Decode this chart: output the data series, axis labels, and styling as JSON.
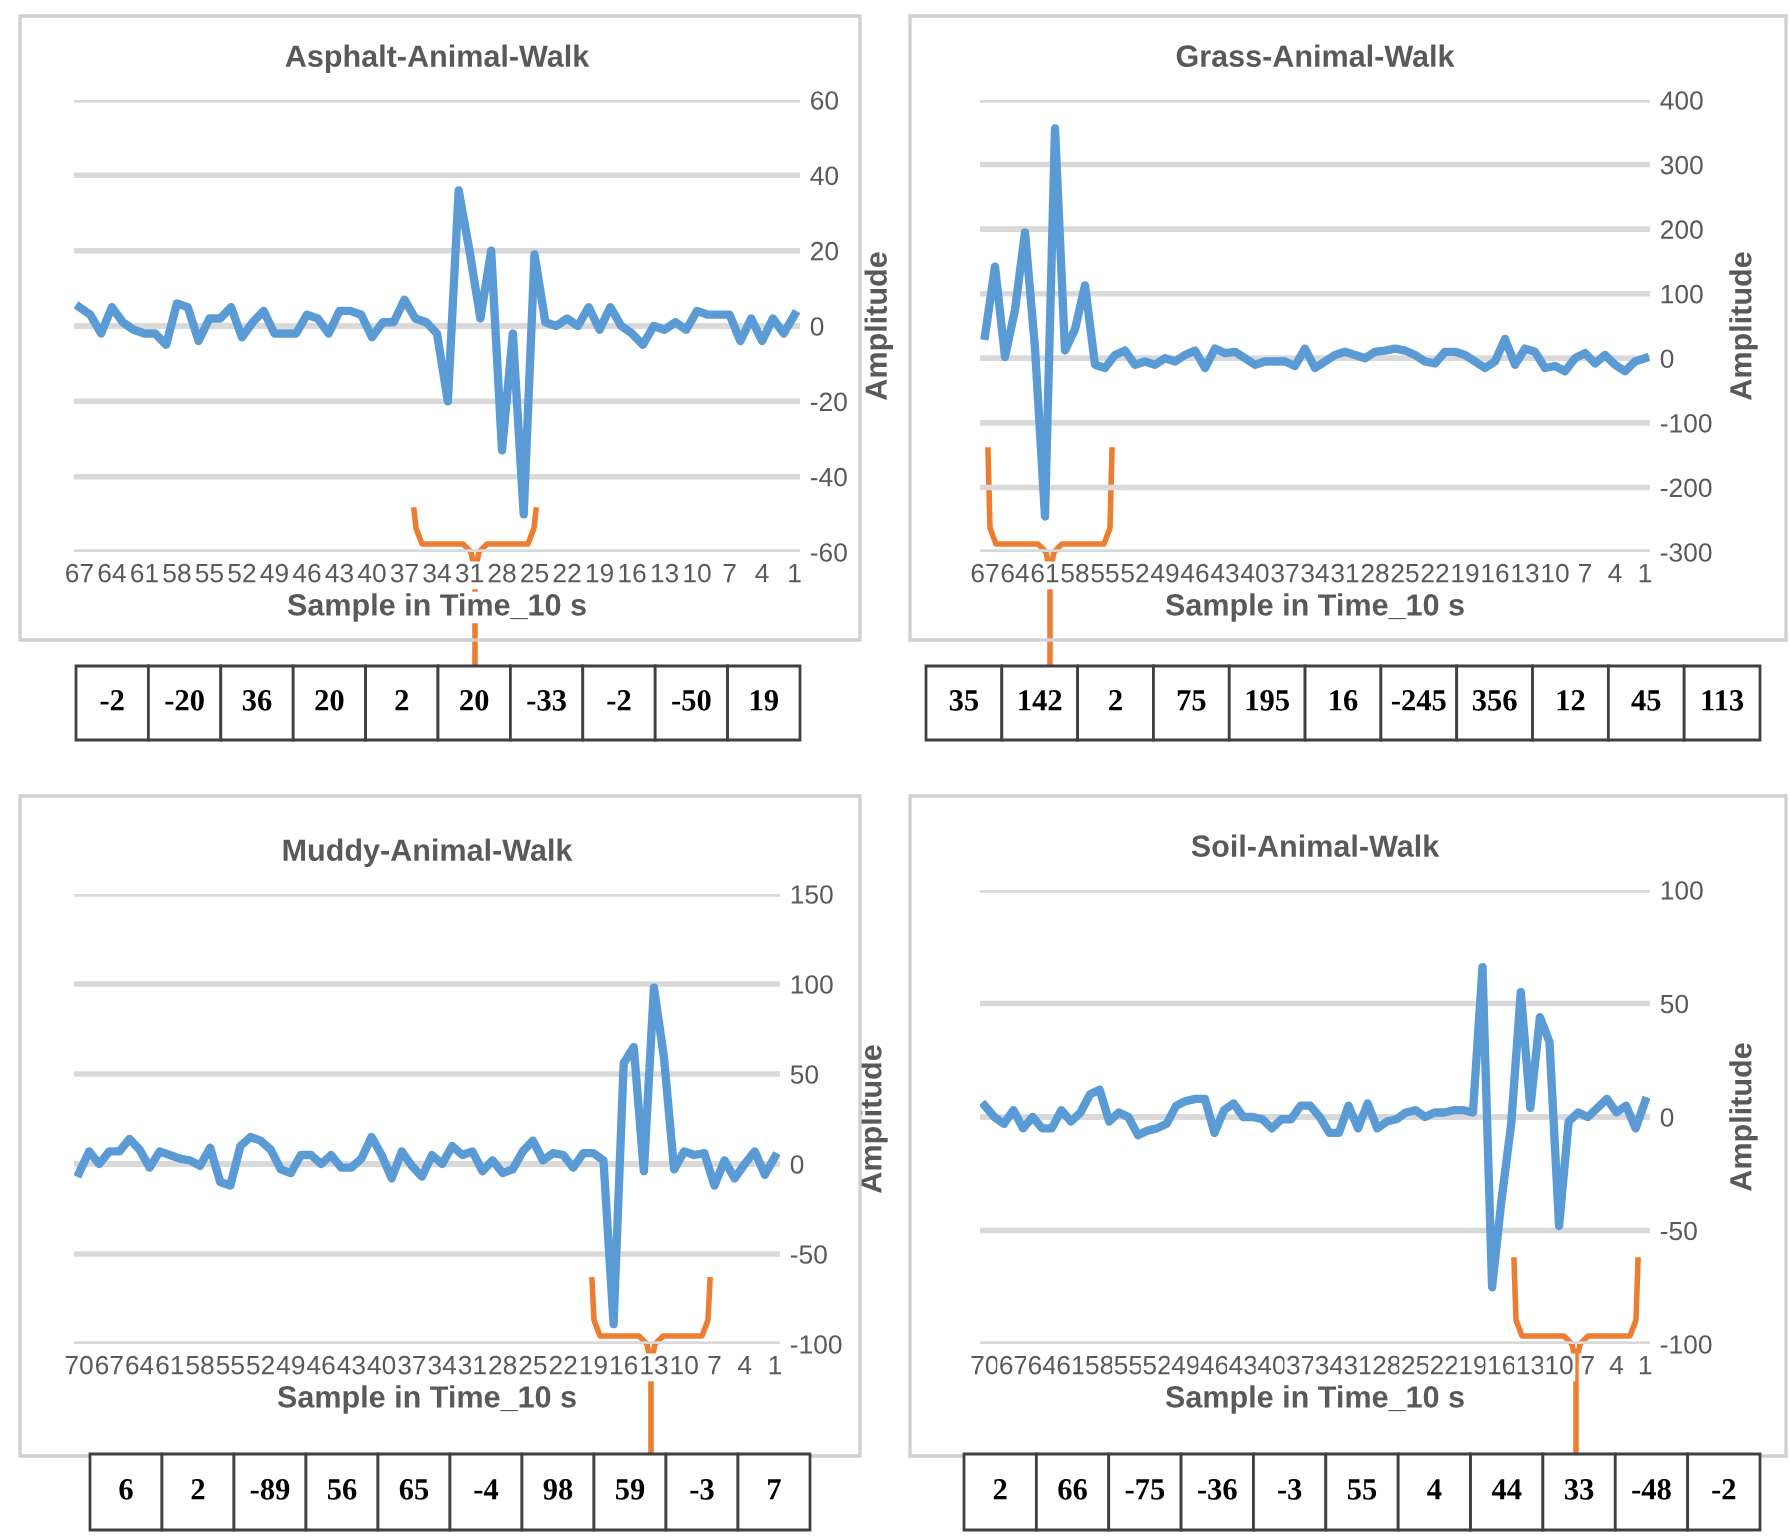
{
  "chart_data": [
    {
      "type": "line",
      "title": "Asphalt-Animal-Walk",
      "xlabel": "Sample in Time_10 s",
      "ylabel": "Amplitude",
      "categories": [
        "67",
        null,
        null,
        "64",
        null,
        null,
        "61",
        null,
        null,
        "58",
        null,
        null,
        "55",
        null,
        null,
        "52",
        null,
        null,
        "49",
        null,
        null,
        "46",
        null,
        null,
        "43",
        null,
        null,
        "40",
        null,
        null,
        "37",
        null,
        null,
        "34",
        null,
        null,
        "31",
        null,
        null,
        "28",
        null,
        null,
        "25",
        null,
        null,
        "22",
        null,
        null,
        "19",
        null,
        null,
        "16",
        null,
        null,
        "13",
        null,
        null,
        "10",
        null,
        null,
        "7",
        null,
        null,
        "4",
        null,
        null,
        "1"
      ],
      "series": [
        {
          "color": "#5b9bd5",
          "values": [
            5,
            3,
            -2,
            5,
            1,
            -1,
            -2,
            -2,
            -5,
            6,
            5,
            -4,
            2,
            2,
            5,
            -3,
            1,
            4,
            -2,
            -2,
            -2,
            3,
            2,
            -2,
            4,
            4,
            3,
            -3,
            1,
            1,
            7,
            2,
            1,
            -2,
            -20,
            36,
            20,
            2,
            20,
            -33,
            -2,
            -50,
            19,
            1,
            0,
            2,
            0,
            5,
            -1,
            5,
            0,
            -2,
            -5,
            0,
            -1,
            1,
            -1,
            4,
            3,
            3,
            3,
            -4,
            2,
            -4,
            2,
            -2,
            3
          ]
        }
      ],
      "ylim": [
        -60,
        60
      ],
      "yticks": [
        -60,
        -40,
        -20,
        0,
        20,
        40,
        60
      ],
      "grid": "y",
      "annotations": [
        "-2",
        "-20",
        "36",
        "20",
        "2",
        "20",
        "-33",
        "-2",
        "-50",
        "19"
      ]
    },
    {
      "type": "line",
      "title": "Grass-Animal-Walk",
      "xlabel": "Sample in Time_10 s",
      "ylabel": "Amplitude",
      "categories": [
        "67",
        null,
        null,
        "64",
        null,
        null,
        "61",
        null,
        null,
        "58",
        null,
        null,
        "55",
        null,
        null,
        "52",
        null,
        null,
        "49",
        null,
        null,
        "46",
        null,
        null,
        "43",
        null,
        null,
        "40",
        null,
        null,
        "37",
        null,
        null,
        "34",
        null,
        null,
        "31",
        null,
        null,
        "28",
        null,
        null,
        "25",
        null,
        null,
        "22",
        null,
        null,
        "19",
        null,
        null,
        "16",
        null,
        null,
        "13",
        null,
        null,
        "10",
        null,
        null,
        "7",
        null,
        null,
        "4",
        null,
        null,
        "1"
      ],
      "series": [
        {
          "color": "#5b9bd5",
          "values": [
            35,
            142,
            2,
            75,
            195,
            16,
            -245,
            356,
            12,
            45,
            113,
            -10,
            -15,
            5,
            12,
            -10,
            -5,
            -10,
            0,
            -5,
            5,
            12,
            -15,
            15,
            8,
            10,
            0,
            -10,
            -5,
            -5,
            -5,
            -12,
            15,
            -15,
            -5,
            5,
            10,
            5,
            0,
            10,
            12,
            15,
            12,
            5,
            -5,
            -8,
            10,
            10,
            5,
            -5,
            -15,
            -5,
            30,
            -10,
            15,
            10,
            -15,
            -12,
            -20,
            0,
            8,
            -8,
            5,
            -10,
            -20,
            -5,
            0
          ]
        }
      ],
      "ylim": [
        -300,
        400
      ],
      "yticks": [
        -300,
        -200,
        -100,
        0,
        100,
        200,
        300,
        400
      ],
      "grid": "y",
      "annotations": [
        "35",
        "142",
        "2",
        "75",
        "195",
        "16",
        "-245",
        "356",
        "12",
        "45",
        "113"
      ]
    },
    {
      "type": "line",
      "title": "Muddy-Animal-Walk",
      "xlabel": "Sample in Time_10 s",
      "ylabel": "Amplitude",
      "categories": [
        "70",
        null,
        null,
        "67",
        null,
        null,
        "64",
        null,
        null,
        "61",
        null,
        null,
        "58",
        null,
        null,
        "55",
        null,
        null,
        "52",
        null,
        null,
        "49",
        null,
        null,
        "46",
        null,
        null,
        "43",
        null,
        null,
        "40",
        null,
        null,
        "37",
        null,
        null,
        "34",
        null,
        null,
        "31",
        null,
        null,
        "28",
        null,
        null,
        "25",
        null,
        null,
        "22",
        null,
        null,
        "19",
        null,
        null,
        "16",
        null,
        null,
        "13",
        null,
        null,
        "10",
        null,
        null,
        "7",
        null,
        null,
        "4",
        null,
        null,
        "1"
      ],
      "series": [
        {
          "color": "#5b9bd5",
          "values": [
            -5,
            7,
            0,
            7,
            7,
            14,
            8,
            -2,
            7,
            5,
            3,
            2,
            -1,
            9,
            -10,
            -12,
            10,
            15,
            13,
            8,
            -3,
            -5,
            5,
            5,
            0,
            5,
            -2,
            -2,
            3,
            15,
            5,
            -8,
            7,
            -1,
            -7,
            5,
            0,
            10,
            5,
            7,
            -4,
            2,
            -5,
            -3,
            7,
            13,
            2,
            6,
            5,
            -2,
            6,
            6,
            2,
            -89,
            56,
            65,
            -4,
            98,
            59,
            -3,
            7,
            5,
            6,
            -12,
            2,
            -8,
            0,
            7,
            -6,
            4
          ]
        }
      ],
      "ylim": [
        -100,
        150
      ],
      "yticks": [
        -100,
        -50,
        0,
        50,
        100,
        150
      ],
      "grid": "y",
      "annotations": [
        "6",
        "2",
        "-89",
        "56",
        "65",
        "-4",
        "98",
        "59",
        "-3",
        "7"
      ]
    },
    {
      "type": "line",
      "title": "Soil-Animal-Walk",
      "xlabel": "Sample in Time_10 s",
      "ylabel": "Amplitude",
      "categories": [
        "70",
        null,
        null,
        "67",
        null,
        null,
        "64",
        null,
        null,
        "61",
        null,
        null,
        "58",
        null,
        null,
        "55",
        null,
        null,
        "52",
        null,
        null,
        "49",
        null,
        null,
        "46",
        null,
        null,
        "43",
        null,
        null,
        "40",
        null,
        null,
        "37",
        null,
        null,
        "34",
        null,
        null,
        "31",
        null,
        null,
        "28",
        null,
        null,
        "25",
        null,
        null,
        "22",
        null,
        null,
        "19",
        null,
        null,
        "16",
        null,
        null,
        "13",
        null,
        null,
        "10",
        null,
        null,
        "7",
        null,
        null,
        "4",
        null,
        null,
        "1"
      ],
      "series": [
        {
          "color": "#5b9bd5",
          "values": [
            5,
            0,
            -3,
            3,
            -5,
            0,
            -5,
            -5,
            3,
            -2,
            2,
            10,
            12,
            -2,
            2,
            0,
            -8,
            -6,
            -5,
            -3,
            5,
            7,
            8,
            8,
            -7,
            3,
            6,
            0,
            0,
            -1,
            -5,
            -1,
            -1,
            5,
            5,
            0,
            -7,
            -7,
            5,
            -5,
            6,
            -5,
            -2,
            -1,
            2,
            3,
            0,
            2,
            2,
            3,
            3,
            2,
            66,
            -75,
            -36,
            -3,
            55,
            4,
            44,
            33,
            -48,
            -2,
            2,
            0,
            4,
            8,
            2,
            5,
            -5,
            7
          ]
        }
      ],
      "ylim": [
        -100,
        100
      ],
      "yticks": [
        -100,
        -50,
        0,
        50,
        100
      ],
      "grid": "y",
      "annotations": [
        "2",
        "66",
        "-75",
        "-36",
        "-3",
        "55",
        "4",
        "44",
        "33",
        "-48",
        "-2"
      ]
    }
  ]
}
